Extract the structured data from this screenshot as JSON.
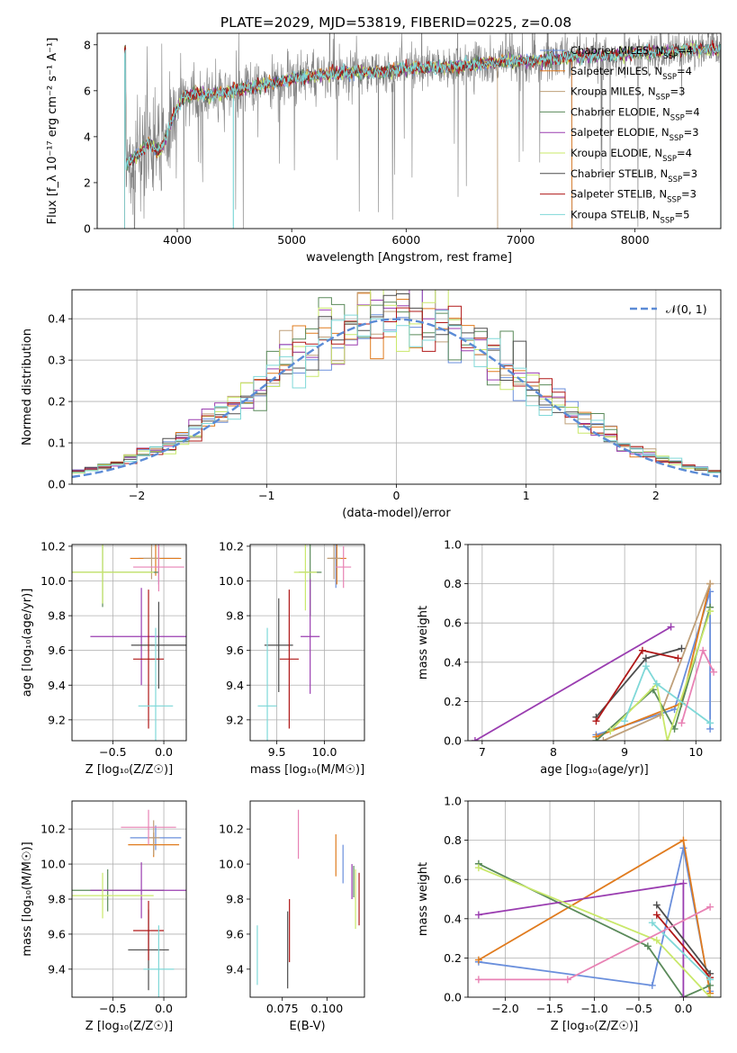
{
  "figure_title": "PLATE=2029, MJD=53819, FIBERID=0225, z=0.08",
  "colors": {
    "chabrier_miles": "#6a8fdc",
    "salpeter_miles": "#e07b1e",
    "kroupa_miles": "#bfa07a",
    "chabrier_elodie": "#5a8a5a",
    "salpeter_elodie": "#9a3db0",
    "kroupa_elodie": "#c9e86a",
    "chabrier_stelib": "#4d4d4d",
    "salpeter_stelib": "#b01818",
    "kroupa_stelib": "#7fd8d8",
    "pink": "#e882b4",
    "data": "#808080",
    "normal": "#5b8bd6"
  },
  "chart_data": [
    {
      "id": "spectrum",
      "type": "line",
      "xlabel": "wavelength [Angstrom, rest frame]",
      "ylabel": "Flux [f_λ 10⁻¹⁷ erg cm⁻² s⁻¹ A⁻¹]",
      "xlim": [
        3300,
        8750
      ],
      "ylim": [
        0,
        8.5
      ],
      "xticks": [
        4000,
        5000,
        6000,
        7000,
        8000
      ],
      "yticks": [
        0,
        2,
        4,
        6,
        8
      ],
      "grid": false,
      "legend_position": "right",
      "legend": [
        {
          "label": "Chabrier MILES, N",
          "sub": "SSP",
          "tail": "=4",
          "color": "#6a8fdc"
        },
        {
          "label": "Salpeter MILES, N",
          "sub": "SSP",
          "tail": "=4",
          "color": "#e07b1e"
        },
        {
          "label": "Kroupa MILES, N",
          "sub": "SSP",
          "tail": "=3",
          "color": "#bfa07a"
        },
        {
          "label": "Chabrier ELODIE, N",
          "sub": "SSP",
          "tail": "=4",
          "color": "#5a8a5a"
        },
        {
          "label": "Salpeter ELODIE, N",
          "sub": "SSP",
          "tail": "=3",
          "color": "#9a3db0"
        },
        {
          "label": "Kroupa ELODIE, N",
          "sub": "SSP",
          "tail": "=4",
          "color": "#c9e86a"
        },
        {
          "label": "Chabrier STELIB, N",
          "sub": "SSP",
          "tail": "=3",
          "color": "#4d4d4d"
        },
        {
          "label": "Salpeter STELIB, N",
          "sub": "SSP",
          "tail": "=3",
          "color": "#b01818"
        },
        {
          "label": "Kroupa STELIB, N",
          "sub": "SSP",
          "tail": "=5",
          "color": "#7fd8d8"
        }
      ],
      "continuum": [
        [
          3550,
          2.8
        ],
        [
          3650,
          3.2
        ],
        [
          3750,
          3.7
        ],
        [
          3850,
          3.3
        ],
        [
          3950,
          4.7
        ],
        [
          4050,
          5.7
        ],
        [
          4150,
          5.9
        ],
        [
          4300,
          5.8
        ],
        [
          4500,
          6.0
        ],
        [
          4700,
          6.2
        ],
        [
          4900,
          6.4
        ],
        [
          5100,
          6.6
        ],
        [
          5300,
          6.7
        ],
        [
          5500,
          6.8
        ],
        [
          5700,
          6.8
        ],
        [
          5900,
          6.9
        ],
        [
          6100,
          7.0
        ],
        [
          6300,
          7.0
        ],
        [
          6500,
          7.1
        ],
        [
          6700,
          7.2
        ],
        [
          6900,
          7.3
        ],
        [
          7100,
          7.3
        ],
        [
          7300,
          7.4
        ],
        [
          7500,
          7.5
        ],
        [
          7700,
          7.5
        ],
        [
          7900,
          7.6
        ],
        [
          8100,
          7.7
        ],
        [
          8300,
          7.7
        ],
        [
          8500,
          7.8
        ],
        [
          8750,
          7.8
        ]
      ]
    },
    {
      "id": "residuals",
      "type": "bar",
      "xlabel": "(data-model)/error",
      "ylabel": "Normed distribution",
      "xlim": [
        -2.5,
        2.5
      ],
      "ylim": [
        0,
        0.47
      ],
      "xticks": [
        -2,
        -1,
        0,
        1,
        2
      ],
      "xticklabels": [
        "−2",
        "−1",
        "0",
        "1",
        "2"
      ],
      "yticks": [
        0,
        0.1,
        0.2,
        0.3,
        0.4
      ],
      "grid": true,
      "legend_position": "top-right",
      "legend": "𝒩(0, 1)",
      "bin_width": 0.1
    },
    {
      "id": "age_vs_Z",
      "type": "scatter",
      "xlabel": "Z [log₁₀(Z/Z☉)]",
      "ylabel": "age  [log₁₀(age/yr)]",
      "xlim": [
        -0.9,
        0.22
      ],
      "ylim": [
        9.08,
        10.21
      ],
      "xticks": [
        -0.5,
        0.0
      ],
      "xticklabels": [
        "−0.5",
        "0.0"
      ],
      "yticks": [
        9.2,
        9.4,
        9.6,
        9.8,
        10.0,
        10.2
      ],
      "grid": true,
      "points": [
        {
          "x": -0.05,
          "y": 10.13,
          "xerr": 0.2,
          "yerr": 0.15,
          "color": "#6a8fdc"
        },
        {
          "x": -0.08,
          "y": 10.13,
          "xerr": 0.25,
          "yerr": 0.1,
          "color": "#e07b1e"
        },
        {
          "x": -0.12,
          "y": 10.13,
          "xerr": 0.08,
          "yerr": 0.12,
          "color": "#bfa07a"
        },
        {
          "x": -0.6,
          "y": 10.05,
          "xerr": 0.55,
          "yerr": 0.2,
          "color": "#5a8a5a"
        },
        {
          "x": -0.22,
          "y": 9.68,
          "xerr": 0.5,
          "yerr": 0.28,
          "color": "#9a3db0"
        },
        {
          "x": -0.6,
          "y": 10.05,
          "xerr": 0.5,
          "yerr": 0.18,
          "color": "#c9e86a"
        },
        {
          "x": -0.05,
          "y": 9.63,
          "xerr": 0.27,
          "yerr": 0.25,
          "color": "#4d4d4d"
        },
        {
          "x": -0.15,
          "y": 9.55,
          "xerr": 0.15,
          "yerr": 0.4,
          "color": "#b01818"
        },
        {
          "x": -0.08,
          "y": 9.28,
          "xerr": 0.17,
          "yerr": 0.45,
          "color": "#7fd8d8"
        },
        {
          "x": -0.05,
          "y": 10.08,
          "xerr": 0.25,
          "yerr": 0.14,
          "color": "#e882b4"
        }
      ]
    },
    {
      "id": "age_vs_mass",
      "type": "scatter",
      "xlabel": "mass [log₁₀(M/M☉)]",
      "ylabel": "",
      "xlim": [
        9.22,
        10.42
      ],
      "ylim": [
        9.08,
        10.21
      ],
      "xticks": [
        9.5,
        10.0
      ],
      "xticklabels": [
        "9.5",
        "10.0"
      ],
      "yticks": [
        9.2,
        9.4,
        9.6,
        9.8,
        10.0,
        10.2
      ],
      "grid": true,
      "points": [
        {
          "x": 10.12,
          "y": 10.13,
          "xerr": 0.05,
          "yerr": 0.17,
          "color": "#6a8fdc"
        },
        {
          "x": 10.13,
          "y": 10.13,
          "xerr": 0.1,
          "yerr": 0.15,
          "color": "#e07b1e"
        },
        {
          "x": 10.1,
          "y": 10.13,
          "xerr": 0.07,
          "yerr": 0.12,
          "color": "#bfa07a"
        },
        {
          "x": 9.85,
          "y": 10.05,
          "xerr": 0.12,
          "yerr": 0.25,
          "color": "#5a8a5a"
        },
        {
          "x": 9.85,
          "y": 9.68,
          "xerr": 0.1,
          "yerr": 0.33,
          "color": "#9a3db0"
        },
        {
          "x": 9.8,
          "y": 10.05,
          "xerr": 0.12,
          "yerr": 0.22,
          "color": "#c9e86a"
        },
        {
          "x": 9.52,
          "y": 9.63,
          "xerr": 0.15,
          "yerr": 0.27,
          "color": "#4d4d4d"
        },
        {
          "x": 9.63,
          "y": 9.55,
          "xerr": 0.1,
          "yerr": 0.4,
          "color": "#b01818"
        },
        {
          "x": 9.4,
          "y": 9.28,
          "xerr": 0.1,
          "yerr": 0.45,
          "color": "#7fd8d8"
        },
        {
          "x": 10.2,
          "y": 10.08,
          "xerr": 0.08,
          "yerr": 0.12,
          "color": "#e882b4"
        }
      ]
    },
    {
      "id": "weight_vs_age",
      "type": "line",
      "xlabel": "age  [log₁₀(age/yr)]",
      "ylabel": "mass weight",
      "xlim": [
        6.8,
        10.35
      ],
      "ylim": [
        0,
        1.0
      ],
      "xticks": [
        7,
        8,
        9,
        10
      ],
      "yticks": [
        0,
        0.2,
        0.4,
        0.6,
        0.8,
        1.0
      ],
      "grid": true,
      "series": [
        {
          "color": "#6a8fdc",
          "x": [
            8.6,
            9.7,
            10.2,
            10.2
          ],
          "y": [
            0.03,
            0.16,
            0.76,
            0.06
          ]
        },
        {
          "color": "#e07b1e",
          "x": [
            8.6,
            9.8,
            10.2
          ],
          "y": [
            0.02,
            0.19,
            0.8
          ]
        },
        {
          "color": "#bfa07a",
          "x": [
            8.7,
            9.5,
            10.2
          ],
          "y": [
            0.0,
            0.13,
            0.8
          ]
        },
        {
          "color": "#5a8a5a",
          "x": [
            8.6,
            9.4,
            9.7,
            10.2
          ],
          "y": [
            0.0,
            0.26,
            0.06,
            0.68
          ]
        },
        {
          "color": "#9a3db0",
          "x": [
            6.9,
            9.65
          ],
          "y": [
            0.0,
            0.58
          ]
        },
        {
          "color": "#c9e86a",
          "x": [
            8.8,
            9.45,
            9.6,
            10.2
          ],
          "y": [
            0.05,
            0.29,
            0.0,
            0.66
          ]
        },
        {
          "color": "#4d4d4d",
          "x": [
            8.6,
            9.3,
            9.8
          ],
          "y": [
            0.12,
            0.42,
            0.47
          ]
        },
        {
          "color": "#b01818",
          "x": [
            8.6,
            9.25,
            9.75
          ],
          "y": [
            0.1,
            0.46,
            0.42
          ]
        },
        {
          "color": "#7fd8d8",
          "x": [
            9.0,
            9.3,
            9.45,
            10.2
          ],
          "y": [
            0.1,
            0.38,
            0.29,
            0.09
          ]
        },
        {
          "color": "#e882b4",
          "x": [
            9.8,
            10.1,
            10.25
          ],
          "y": [
            0.09,
            0.46,
            0.35
          ]
        }
      ]
    },
    {
      "id": "mass_vs_Z",
      "type": "scatter",
      "xlabel": "Z [log₁₀(Z/Z☉)]",
      "ylabel": "mass [log₁₀(M/M☉)]",
      "xlim": [
        -0.9,
        0.22
      ],
      "ylim": [
        9.24,
        10.36
      ],
      "xticks": [
        -0.5,
        0.0
      ],
      "xticklabels": [
        "−0.5",
        "0.0"
      ],
      "yticks": [
        9.4,
        9.6,
        9.8,
        10.0,
        10.2
      ],
      "grid": true,
      "points": [
        {
          "x": -0.08,
          "y": 10.15,
          "xerr": 0.25,
          "yerr": 0.07,
          "color": "#6a8fdc"
        },
        {
          "x": -0.1,
          "y": 10.11,
          "xerr": 0.25,
          "yerr": 0.07,
          "color": "#e07b1e"
        },
        {
          "x": -0.1,
          "y": 10.15,
          "xerr": 0.06,
          "yerr": 0.1,
          "color": "#bfa07a"
        },
        {
          "x": -0.55,
          "y": 9.85,
          "xerr": 0.55,
          "yerr": 0.12,
          "color": "#5a8a5a"
        },
        {
          "x": -0.22,
          "y": 9.85,
          "xerr": 0.5,
          "yerr": 0.16,
          "color": "#9a3db0"
        },
        {
          "x": -0.6,
          "y": 9.82,
          "xerr": 0.5,
          "yerr": 0.13,
          "color": "#c9e86a"
        },
        {
          "x": -0.15,
          "y": 9.51,
          "xerr": 0.2,
          "yerr": 0.23,
          "color": "#4d4d4d"
        },
        {
          "x": -0.15,
          "y": 9.62,
          "xerr": 0.15,
          "yerr": 0.17,
          "color": "#b01818"
        },
        {
          "x": -0.05,
          "y": 9.4,
          "xerr": 0.15,
          "yerr": 0.25,
          "color": "#7fd8d8"
        },
        {
          "x": -0.15,
          "y": 10.21,
          "xerr": 0.27,
          "yerr": 0.1,
          "color": "#e882b4"
        }
      ]
    },
    {
      "id": "mass_vs_ebv",
      "type": "scatter",
      "xlabel": "E(B-V)",
      "ylabel": "",
      "xlim": [
        0.057,
        0.121
      ],
      "ylim": [
        9.24,
        10.36
      ],
      "xticks": [
        0.075,
        0.1
      ],
      "xticklabels": [
        "0.075",
        "0.100"
      ],
      "yticks": [
        9.4,
        9.6,
        9.8,
        10.0,
        10.2
      ],
      "grid": false,
      "points": [
        {
          "x": 0.109,
          "y": 10.0,
          "xerr": 0,
          "yerr": 0.11,
          "color": "#6a8fdc"
        },
        {
          "x": 0.105,
          "y": 10.05,
          "xerr": 0,
          "yerr": 0.12,
          "color": "#e07b1e"
        },
        {
          "x": 0.115,
          "y": 9.9,
          "xerr": 0,
          "yerr": 0.09,
          "color": "#5a8a5a"
        },
        {
          "x": 0.114,
          "y": 9.9,
          "xerr": 0,
          "yerr": 0.1,
          "color": "#9a3db0"
        },
        {
          "x": 0.116,
          "y": 9.8,
          "xerr": 0,
          "yerr": 0.17,
          "color": "#c9e86a"
        },
        {
          "x": 0.118,
          "y": 9.8,
          "xerr": 0,
          "yerr": 0.15,
          "color": "#b01818"
        },
        {
          "x": 0.078,
          "y": 9.51,
          "xerr": 0,
          "yerr": 0.22,
          "color": "#4d4d4d"
        },
        {
          "x": 0.079,
          "y": 9.62,
          "xerr": 0,
          "yerr": 0.18,
          "color": "#b01818"
        },
        {
          "x": 0.061,
          "y": 9.48,
          "xerr": 0,
          "yerr": 0.17,
          "color": "#7fd8d8"
        },
        {
          "x": 0.084,
          "y": 10.17,
          "xerr": 0,
          "yerr": 0.14,
          "color": "#e882b4"
        }
      ]
    },
    {
      "id": "weight_vs_Z",
      "type": "line",
      "xlabel": "Z [log₁₀(Z/Z☉)]",
      "ylabel": "mass weight",
      "xlim": [
        -2.42,
        0.42
      ],
      "ylim": [
        0,
        1.0
      ],
      "xticks": [
        -2.0,
        -1.5,
        -1.0,
        -0.5,
        0.0
      ],
      "xticklabels": [
        "−2.0",
        "−1.5",
        "−1.0",
        "−0.5",
        "0.0"
      ],
      "yticks": [
        0,
        0.2,
        0.4,
        0.6,
        0.8,
        1.0
      ],
      "grid": true,
      "series": [
        {
          "color": "#6a8fdc",
          "x": [
            -2.3,
            -0.35,
            0.0,
            0.3
          ],
          "y": [
            0.18,
            0.06,
            0.76,
            0.03
          ]
        },
        {
          "color": "#e07b1e",
          "x": [
            -2.3,
            0.0,
            0.3
          ],
          "y": [
            0.19,
            0.8,
            0.02
          ]
        },
        {
          "color": "#5a8a5a",
          "x": [
            -2.3,
            -0.4,
            0.0,
            0.3
          ],
          "y": [
            0.68,
            0.26,
            0.0,
            0.06
          ]
        },
        {
          "color": "#9a3db0",
          "x": [
            -2.3,
            0.0,
            0.0
          ],
          "y": [
            0.42,
            0.58,
            0.0
          ]
        },
        {
          "color": "#c9e86a",
          "x": [
            -2.3,
            -0.3,
            0.3
          ],
          "y": [
            0.66,
            0.29,
            0.0
          ]
        },
        {
          "color": "#4d4d4d",
          "x": [
            -0.3,
            0.3
          ],
          "y": [
            0.47,
            0.12
          ]
        },
        {
          "color": "#b01818",
          "x": [
            -0.3,
            0.3
          ],
          "y": [
            0.42,
            0.1
          ]
        },
        {
          "color": "#7fd8d8",
          "x": [
            -0.35,
            0.3
          ],
          "y": [
            0.38,
            0.09
          ]
        },
        {
          "color": "#e882b4",
          "x": [
            -2.3,
            -1.3,
            0.3
          ],
          "y": [
            0.09,
            0.09,
            0.46
          ]
        }
      ]
    }
  ]
}
